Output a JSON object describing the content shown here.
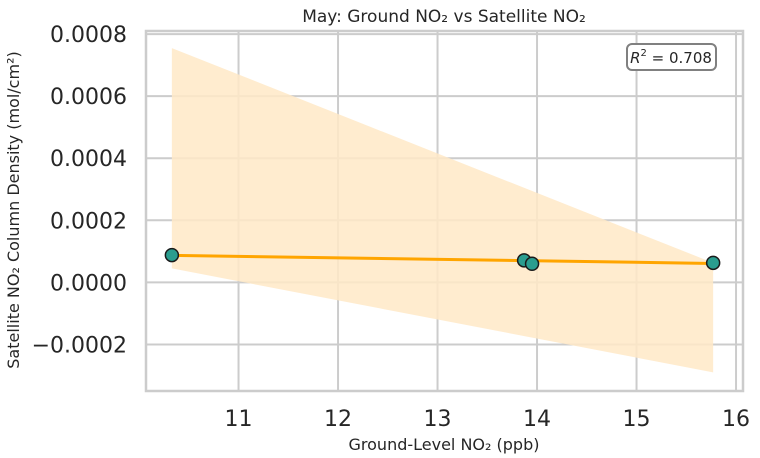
{
  "chart_data": {
    "type": "scatter",
    "title": "May: Ground NO₂ vs Satellite NO₂",
    "xlabel": "Ground-Level NO₂ (ppb)",
    "ylabel": "Satellite NO₂ Column Density (mol/cm²)",
    "xlim": [
      10.07,
      16.07
    ],
    "ylim": [
      -0.00035,
      0.00081
    ],
    "x_ticks": [
      11,
      12,
      13,
      14,
      15,
      16
    ],
    "y_ticks": [
      -0.0002,
      0.0,
      0.0002,
      0.0004,
      0.0006,
      0.0008
    ],
    "x_tick_labels": [
      "11",
      "12",
      "13",
      "14",
      "15",
      "16"
    ],
    "y_tick_labels": [
      "−0.0002",
      "0.0000",
      "0.0002",
      "0.0004",
      "0.0006",
      "0.0008"
    ],
    "grid": true,
    "points": [
      {
        "x": 10.33,
        "y": 8.8e-05
      },
      {
        "x": 13.87,
        "y": 7.1e-05
      },
      {
        "x": 13.95,
        "y": 6e-05
      },
      {
        "x": 15.77,
        "y": 6.3e-05
      }
    ],
    "regression_line": {
      "x": [
        10.33,
        15.77
      ],
      "y": [
        8.7e-05,
        6.1e-05
      ]
    },
    "confidence_band": {
      "x": [
        10.33,
        15.77
      ],
      "upper": [
        0.000755,
        6.3e-05
      ],
      "lower": [
        4.5e-05,
        -0.00029
      ]
    },
    "annotation": {
      "r2_label": "R² = 0.708",
      "r2_symbol": "R",
      "r2_exponent": "2",
      "r2_value": " = 0.708"
    },
    "colors": {
      "line": "#ffa500",
      "band": "#ffe9c7",
      "point_fill": "#2a9d8f",
      "point_edge": "#1a1a1a",
      "grid": "#cccccc",
      "frame": "#cccccc"
    }
  }
}
